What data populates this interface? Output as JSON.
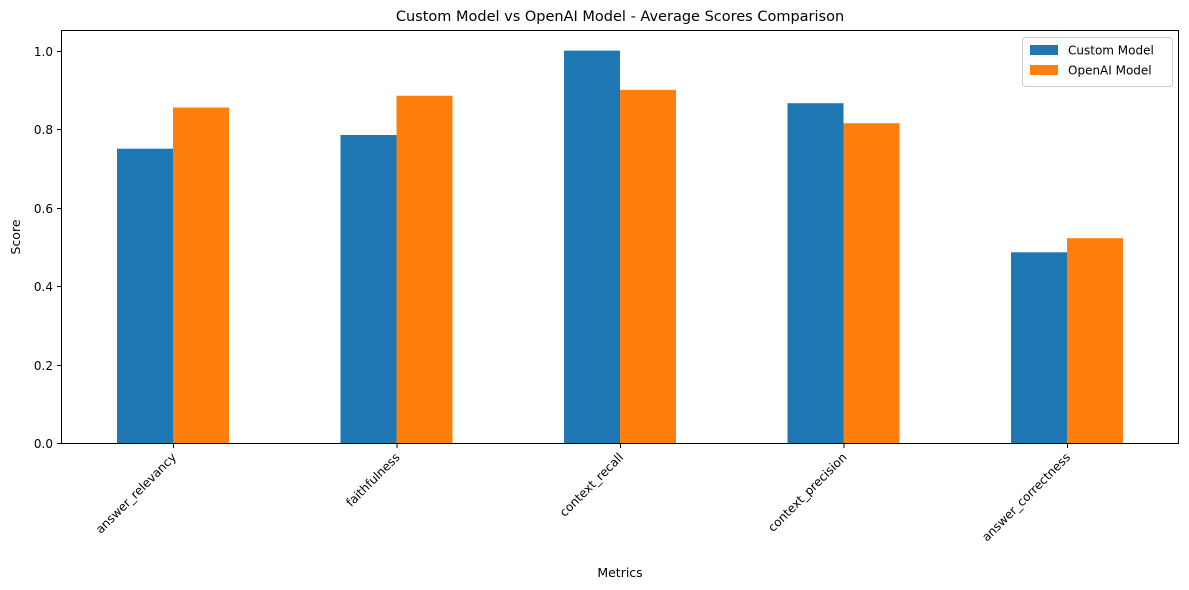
{
  "chart_data": {
    "type": "bar",
    "title": "Custom Model vs OpenAI Model - Average Scores Comparison",
    "xlabel": "Metrics",
    "ylabel": "Score",
    "categories": [
      "answer_relevancy",
      "faithfulness",
      "context_recall",
      "context_precision",
      "answer_correctness"
    ],
    "series": [
      {
        "name": "Custom Model",
        "color": "#1f77b4",
        "values": [
          0.75,
          0.785,
          1.0,
          0.866,
          0.486
        ]
      },
      {
        "name": "OpenAI Model",
        "color": "#ff7f0e",
        "values": [
          0.855,
          0.885,
          0.9,
          0.815,
          0.522
        ]
      }
    ],
    "ylim": [
      0,
      1.05
    ],
    "yticks": [
      "0.0",
      "0.2",
      "0.4",
      "0.6",
      "0.8",
      "1.0"
    ],
    "grid": false,
    "legend_position": "top-right"
  }
}
